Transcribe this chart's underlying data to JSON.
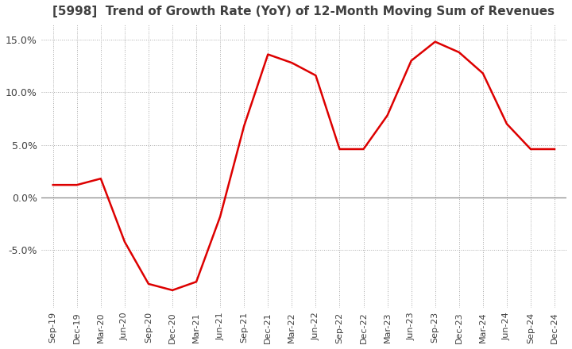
{
  "title": "[5998]  Trend of Growth Rate (YoY) of 12-Month Moving Sum of Revenues",
  "title_fontsize": 11,
  "line_color": "#dd0000",
  "background_color": "#ffffff",
  "grid_color": "#aaaaaa",
  "zero_line_color": "#888888",
  "tick_label_color": "#404040",
  "ylim": [
    -0.105,
    0.165
  ],
  "yticks": [
    -0.05,
    0.0,
    0.05,
    0.1,
    0.15
  ],
  "ytick_labels": [
    "-5.0%",
    "0.0%",
    "5.0%",
    "10.0%",
    "15.0%"
  ],
  "dates": [
    "Sep-19",
    "Dec-19",
    "Mar-20",
    "Jun-20",
    "Sep-20",
    "Dec-20",
    "Mar-21",
    "Jun-21",
    "Sep-21",
    "Dec-21",
    "Mar-22",
    "Jun-22",
    "Sep-22",
    "Dec-22",
    "Mar-23",
    "Jun-23",
    "Sep-23",
    "Dec-23",
    "Mar-24",
    "Jun-24",
    "Sep-24",
    "Dec-24"
  ],
  "values": [
    0.012,
    0.012,
    0.018,
    -0.042,
    -0.082,
    -0.088,
    -0.08,
    -0.018,
    0.068,
    0.136,
    0.128,
    0.116,
    0.046,
    0.046,
    0.078,
    0.13,
    0.148,
    0.138,
    0.118,
    0.07,
    0.046,
    0.046
  ]
}
